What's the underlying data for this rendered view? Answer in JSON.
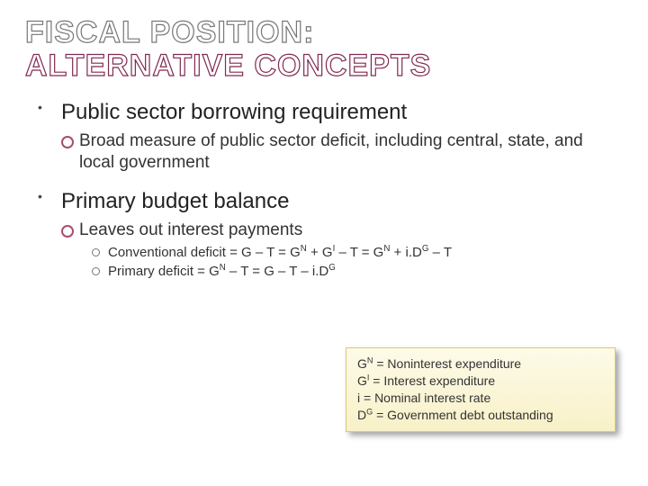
{
  "title": {
    "line1": "FISCAL POSITION:",
    "line2": "ALTERNATIVE CONCEPTS",
    "line1_color": "#777777",
    "line2_color": "#802a52",
    "fontsize": 34
  },
  "items": [
    {
      "label": "Public sector borrowing requirement",
      "sub": [
        {
          "label": "Broad measure of public sector deficit, including central, state, and local government"
        }
      ]
    },
    {
      "label": "Primary budget balance",
      "sub": [
        {
          "label": "Leaves out interest payments",
          "sub": [
            {
              "html": "Conventional deficit = G – T = G<sup>N</sup> + G<sup>I</sup> – T = G<sup>N</sup> + i.D<sup>G</sup> – T"
            },
            {
              "html": "Primary deficit = G<sup>N</sup> – T = G – T – i.D<sup>G</sup>"
            }
          ]
        }
      ]
    }
  ],
  "legend": {
    "lines": [
      "G<sup>N</sup> = Noninterest expenditure",
      "G<sup>I</sup> = Interest expenditure",
      "i = Nominal interest rate",
      "D<sup>G</sup> = Government debt outstanding"
    ],
    "background": "#fdfae8",
    "border_color": "#d8c97a",
    "fontsize": 14
  },
  "colors": {
    "bullet2_ring": "#a84d6f",
    "bullet3_ring": "#777777",
    "text": "#333333",
    "background": "#ffffff"
  }
}
